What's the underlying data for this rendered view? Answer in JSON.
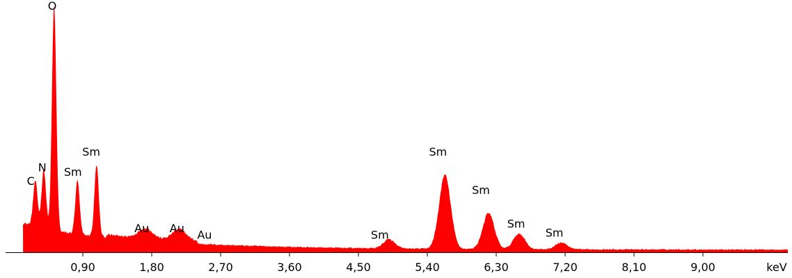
{
  "chart_data": {
    "type": "area",
    "title": "",
    "xlabel": "keV",
    "ylabel": "",
    "xlim": [
      0.0,
      10.0
    ],
    "ylim": [
      0,
      1.0
    ],
    "x_ticks": [
      {
        "value": 0.9,
        "label": "0,90"
      },
      {
        "value": 1.8,
        "label": "1,80"
      },
      {
        "value": 2.7,
        "label": "2,70"
      },
      {
        "value": 3.6,
        "label": "3,60"
      },
      {
        "value": 4.5,
        "label": "4,50"
      },
      {
        "value": 5.4,
        "label": "5,40"
      },
      {
        "value": 6.3,
        "label": "6,30"
      },
      {
        "value": 7.2,
        "label": "7,20"
      },
      {
        "value": 8.1,
        "label": "8,10"
      },
      {
        "value": 9.0,
        "label": "9,00"
      }
    ],
    "unit_label": "keV",
    "fill_color": "#ff0000",
    "grid": false,
    "peaks": [
      {
        "label": "C",
        "x": 0.28,
        "y": 0.2
      },
      {
        "label": "N",
        "x": 0.39,
        "y": 0.26
      },
      {
        "label": "O",
        "x": 0.525,
        "y": 1.0
      },
      {
        "label": "Sm",
        "x": 0.83,
        "y": 0.24
      },
      {
        "label": "Sm",
        "x": 1.08,
        "y": 0.32
      },
      {
        "label": "Au",
        "x": 1.72,
        "y": 0.045
      },
      {
        "label": "Au",
        "x": 2.16,
        "y": 0.05
      },
      {
        "label": "Sm",
        "x": 4.9,
        "y": 0.04
      },
      {
        "label": "Sm",
        "x": 5.63,
        "y": 0.33
      },
      {
        "label": "Sm",
        "x": 6.2,
        "y": 0.16
      },
      {
        "label": "Sm",
        "x": 6.6,
        "y": 0.07
      },
      {
        "label": "Sm",
        "x": 7.15,
        "y": 0.03
      }
    ],
    "peak_labels": [
      {
        "text": "C",
        "x": 0.22,
        "y": 0.3
      },
      {
        "text": "N",
        "x": 0.37,
        "y": 0.36
      },
      {
        "text": "O",
        "x": 0.5,
        "y": 1.08
      },
      {
        "text": "Sm",
        "x": 0.77,
        "y": 0.34
      },
      {
        "text": "Sm",
        "x": 1.01,
        "y": 0.43
      },
      {
        "text": "Au",
        "x": 1.67,
        "y": 0.09
      },
      {
        "text": "Au",
        "x": 2.13,
        "y": 0.09
      },
      {
        "text": "Au",
        "x": 2.49,
        "y": 0.06
      },
      {
        "text": "Sm",
        "x": 4.78,
        "y": 0.06
      },
      {
        "text": "Sm",
        "x": 5.54,
        "y": 0.43
      },
      {
        "text": "Sm",
        "x": 6.1,
        "y": 0.26
      },
      {
        "text": "Sm",
        "x": 6.56,
        "y": 0.11
      },
      {
        "text": "Sm",
        "x": 7.06,
        "y": 0.07
      }
    ]
  }
}
